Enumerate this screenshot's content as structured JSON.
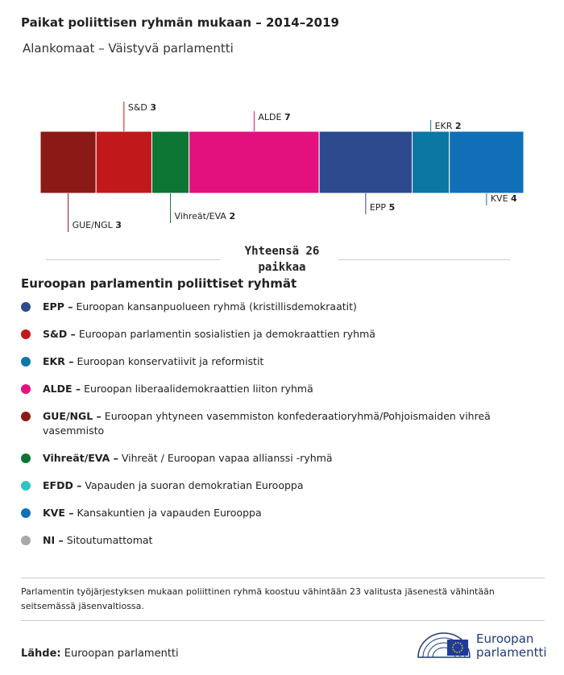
{
  "chart_data": {
    "type": "stacked-bar",
    "title": "Paikat poliittisen ryhmän mukaan – 2014–2019",
    "subtitle": "Alankomaat – Väistyvä parlamentti",
    "categories": [
      "GUE/NGL",
      "S&D",
      "Vihreät/EVA",
      "ALDE",
      "EPP",
      "EKR",
      "KVE"
    ],
    "values": [
      3,
      3,
      2,
      7,
      5,
      2,
      4
    ],
    "colors": [
      "#8b1a17",
      "#c1181c",
      "#0e7634",
      "#e2117e",
      "#2e4a8e",
      "#0b77a3",
      "#116fb8"
    ],
    "total_label": "Yhteensä 26 paikkaa"
  },
  "legend": {
    "title": "Euroopan parlamentin poliittiset ryhmät",
    "items": [
      {
        "abbr": "EPP –",
        "desc": "Euroopan kansanpuolueen ryhmä (kristillisdemokraatit)",
        "color": "#2e4a8e"
      },
      {
        "abbr": "S&D –",
        "desc": "Euroopan parlamentin sosialistien ja demokraattien ryhmä",
        "color": "#c1181c"
      },
      {
        "abbr": "EKR –",
        "desc": "Euroopan konservatiivit ja reformistit",
        "color": "#0b77a3"
      },
      {
        "abbr": "ALDE –",
        "desc": "Euroopan liberaalidemokraattien liiton ryhmä",
        "color": "#e2117e"
      },
      {
        "abbr": "GUE/NGL –",
        "desc": "Euroopan yhtyneen vasemmiston konfederaatioryhmä/Pohjoismaiden vihreä vasemmisto",
        "color": "#8b1a17"
      },
      {
        "abbr": "Vihreät/EVA –",
        "desc": "Vihreät / Euroopan vapaa allianssi -ryhmä",
        "color": "#0e7634"
      },
      {
        "abbr": "EFDD –",
        "desc": "Vapauden ja suoran demokratian Eurooppa",
        "color": "#2ec4c0"
      },
      {
        "abbr": "KVE –",
        "desc": "Kansakuntien ja vapauden Eurooppa",
        "color": "#116fb8"
      },
      {
        "abbr": "NI –",
        "desc": "Sitoutumattomat",
        "color": "#a9a9a9"
      }
    ]
  },
  "note": "Parlamentin työjärjestyksen mukaan poliittinen ryhmä koostuu vähintään 23 valitusta jäsenestä vähintään seitsemässä jäsenvaltiossa.",
  "source": {
    "label": "Lähde:",
    "text": "Euroopan parlamentti"
  },
  "logo": {
    "line1": "Euroopan",
    "line2": "parlamentti"
  }
}
